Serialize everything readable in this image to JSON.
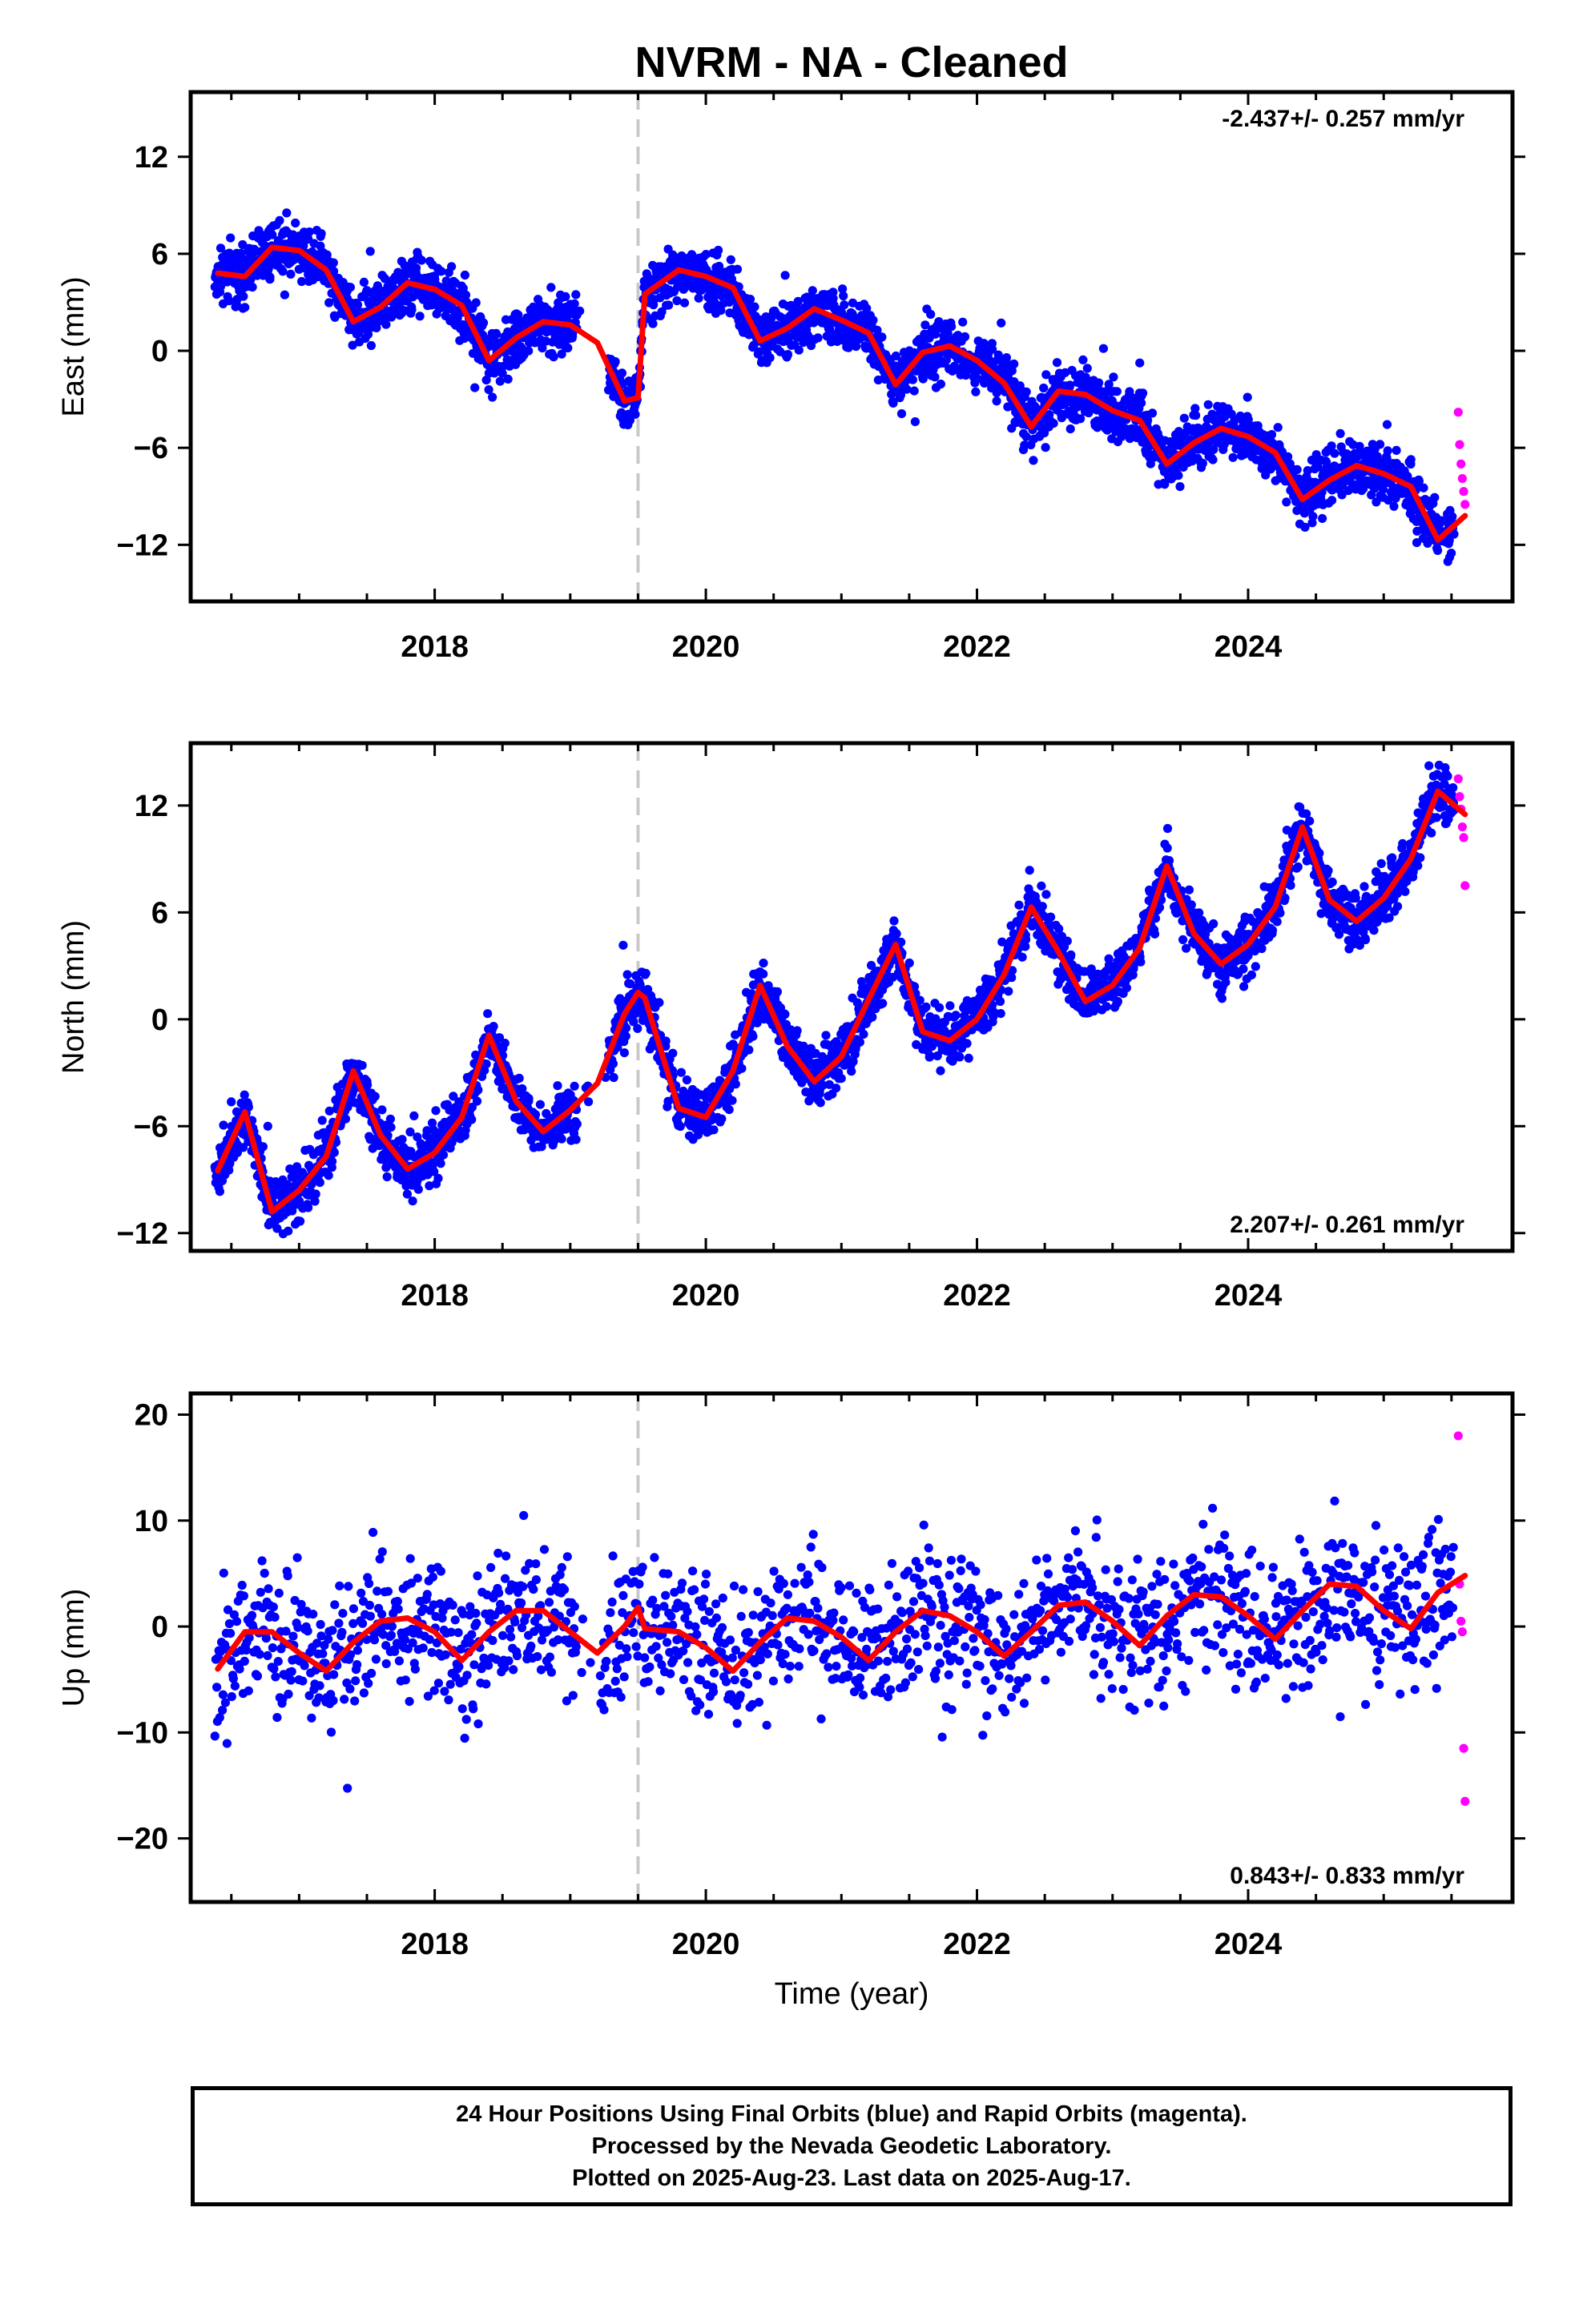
{
  "title": "NVRM  - NA - Cleaned",
  "colors": {
    "final_orbits": "#0000ff",
    "rapid_orbits": "#ff00ff",
    "model_fit": "#ff0000",
    "event_line": "#c8c8c8"
  },
  "x_axis": {
    "label": "Time (year)",
    "range": [
      2016.2,
      2025.95
    ],
    "major_ticks": [
      2018,
      2020,
      2022,
      2024
    ],
    "minor_ticks": [
      2016.5,
      2017,
      2017.5,
      2018,
      2018.5,
      2019,
      2019.5,
      2020,
      2020.5,
      2021,
      2021.5,
      2022,
      2022.5,
      2023,
      2023.5,
      2024,
      2024.5,
      2025,
      2025.5
    ]
  },
  "event_line_year": 2019.5,
  "footer": {
    "line1": "24 Hour Positions Using Final Orbits (blue) and Rapid Orbits (magenta).",
    "line2": "Processed by the Nevada Geodetic Laboratory.",
    "line3": "Plotted on 2025-Aug-23. Last data on 2025-Aug-17."
  },
  "chart_data": [
    {
      "type": "scatter",
      "component": "east",
      "ylabel": "East (mm)",
      "ylim": [
        -15.5,
        16
      ],
      "yticks": [
        -12,
        -6,
        0,
        6,
        12
      ],
      "rate": "-2.437+/- 0.257 mm/yr",
      "rate_position": "top-right",
      "grid": false,
      "model_fit": {
        "x": [
          2016.4,
          2016.6,
          2016.8,
          2017.0,
          2017.2,
          2017.4,
          2017.6,
          2017.8,
          2018.0,
          2018.2,
          2018.4,
          2018.6,
          2018.8,
          2019.0,
          2019.2,
          2019.4,
          2019.5,
          2019.55,
          2019.8,
          2020.0,
          2020.2,
          2020.4,
          2020.6,
          2020.8,
          2021.0,
          2021.2,
          2021.4,
          2021.6,
          2021.8,
          2022.0,
          2022.2,
          2022.4,
          2022.6,
          2022.8,
          2023.0,
          2023.2,
          2023.4,
          2023.6,
          2023.8,
          2024.0,
          2024.2,
          2024.4,
          2024.6,
          2024.8,
          2025.0,
          2025.2,
          2025.4,
          2025.6
        ],
        "y": [
          4.8,
          4.6,
          6.4,
          6.2,
          5.0,
          1.8,
          2.7,
          4.2,
          3.8,
          2.8,
          -0.6,
          0.8,
          1.8,
          1.6,
          0.5,
          -3.1,
          -2.9,
          3.5,
          5.0,
          4.6,
          3.9,
          0.6,
          1.4,
          2.6,
          1.9,
          1.1,
          -2.1,
          -0.1,
          0.3,
          -0.6,
          -2.0,
          -4.7,
          -2.5,
          -2.7,
          -3.7,
          -4.3,
          -7.0,
          -5.7,
          -4.8,
          -5.3,
          -6.3,
          -9.2,
          -8.0,
          -7.1,
          -7.6,
          -8.4,
          -11.7,
          -10.2
        ]
      },
      "scatter": {
        "seed": 11,
        "noise": 1.2,
        "n_per_year": 330,
        "gaps": [
          [
            2019.05,
            2019.28
          ]
        ],
        "rapid_orbits": {
          "x": [
            2025.55,
            2025.56,
            2025.57,
            2025.58,
            2025.59,
            2025.6
          ],
          "y": [
            -3.8,
            -5.8,
            -7.0,
            -7.9,
            -8.7,
            -9.5
          ]
        }
      }
    },
    {
      "type": "scatter",
      "component": "north",
      "ylabel": "North (mm)",
      "ylim": [
        -13,
        15.5
      ],
      "yticks": [
        -12,
        -6,
        0,
        6,
        12
      ],
      "rate": "2.207+/- 0.261 mm/yr",
      "rate_position": "bottom-right",
      "grid": false,
      "model_fit": {
        "x": [
          2016.4,
          2016.6,
          2016.8,
          2017.0,
          2017.2,
          2017.4,
          2017.6,
          2017.8,
          2018.0,
          2018.2,
          2018.4,
          2018.6,
          2018.8,
          2019.0,
          2019.2,
          2019.4,
          2019.5,
          2019.55,
          2019.8,
          2020.0,
          2020.2,
          2020.4,
          2020.6,
          2020.8,
          2021.0,
          2021.2,
          2021.4,
          2021.6,
          2021.8,
          2022.0,
          2022.2,
          2022.4,
          2022.6,
          2022.8,
          2023.0,
          2023.2,
          2023.4,
          2023.6,
          2023.8,
          2024.0,
          2024.2,
          2024.4,
          2024.6,
          2024.8,
          2025.0,
          2025.2,
          2025.4,
          2025.6
        ],
        "y": [
          -8.5,
          -5.2,
          -10.8,
          -9.6,
          -7.7,
          -2.9,
          -6.5,
          -8.4,
          -7.5,
          -5.5,
          -0.9,
          -4.6,
          -6.3,
          -5.1,
          -3.6,
          0.3,
          1.5,
          1.2,
          -5.0,
          -5.5,
          -2.9,
          1.9,
          -1.5,
          -3.5,
          -2.1,
          1.1,
          4.2,
          -0.7,
          -1.2,
          0.0,
          2.5,
          6.3,
          3.8,
          1.0,
          1.9,
          4.0,
          8.6,
          4.8,
          3.1,
          4.2,
          6.3,
          10.8,
          6.7,
          5.5,
          6.8,
          9.0,
          12.8,
          11.5
        ]
      },
      "scatter": {
        "seed": 23,
        "noise": 1.1,
        "n_per_year": 330,
        "gaps": [
          [
            2019.05,
            2019.28
          ]
        ],
        "rapid_orbits": {
          "x": [
            2025.55,
            2025.56,
            2025.57,
            2025.58,
            2025.59,
            2025.6
          ],
          "y": [
            13.5,
            12.5,
            11.8,
            10.8,
            10.2,
            7.5
          ]
        }
      }
    },
    {
      "type": "scatter",
      "component": "up",
      "ylabel": "Up (mm)",
      "ylim": [
        -26,
        22
      ],
      "yticks": [
        -20,
        -10,
        0,
        10,
        20
      ],
      "rate": "0.843+/- 0.833 mm/yr",
      "rate_position": "bottom-right",
      "grid": false,
      "model_fit": {
        "x": [
          2016.4,
          2016.6,
          2016.8,
          2017.0,
          2017.2,
          2017.4,
          2017.6,
          2017.8,
          2018.0,
          2018.2,
          2018.4,
          2018.6,
          2018.8,
          2019.0,
          2019.2,
          2019.4,
          2019.5,
          2019.55,
          2019.8,
          2020.0,
          2020.2,
          2020.4,
          2020.6,
          2020.8,
          2021.0,
          2021.2,
          2021.4,
          2021.6,
          2021.8,
          2022.0,
          2022.2,
          2022.4,
          2022.6,
          2022.8,
          2023.0,
          2023.2,
          2023.4,
          2023.6,
          2023.8,
          2024.0,
          2024.2,
          2024.4,
          2024.6,
          2024.8,
          2025.0,
          2025.2,
          2025.4,
          2025.6
        ],
        "y": [
          -4.0,
          -0.5,
          -0.5,
          -2.5,
          -4.2,
          -1.5,
          0.5,
          0.8,
          -0.5,
          -3.2,
          -0.5,
          1.5,
          1.5,
          -0.5,
          -2.5,
          0.0,
          1.8,
          -0.2,
          -0.5,
          -2.0,
          -4.2,
          -1.5,
          0.8,
          0.5,
          -1.0,
          -3.2,
          -0.5,
          1.5,
          1.0,
          -0.5,
          -2.8,
          -0.5,
          2.0,
          2.3,
          0.5,
          -1.8,
          1.0,
          3.0,
          2.8,
          1.0,
          -1.2,
          1.5,
          4.0,
          3.8,
          1.5,
          -0.2,
          3.2,
          4.8
        ]
      },
      "scatter": {
        "seed": 37,
        "noise": 4.6,
        "n_per_year": 170,
        "gaps": [
          [
            2019.05,
            2019.22
          ]
        ],
        "rapid_orbits": {
          "x": [
            2025.55,
            2025.56,
            2025.57,
            2025.58,
            2025.59,
            2025.6
          ],
          "y": [
            18.0,
            4.0,
            0.5,
            -0.5,
            -11.5,
            -16.5
          ]
        }
      }
    }
  ]
}
